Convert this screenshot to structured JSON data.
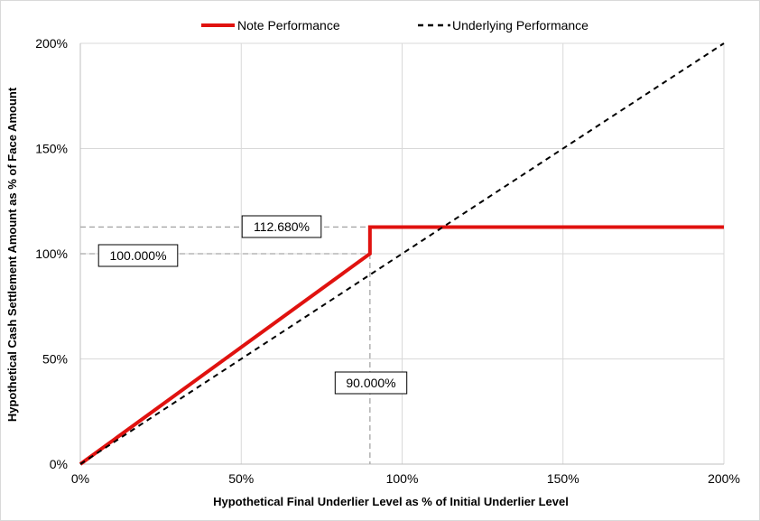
{
  "chart_data": {
    "type": "line",
    "xlabel": "Hypothetical Final Underlier Level as % of Initial Underlier Level",
    "ylabel": "Hypothetical Cash Settlement Amount as % of Face Amount",
    "xlim": [
      0,
      200
    ],
    "ylim": [
      0,
      200
    ],
    "x_ticks": [
      0,
      50,
      100,
      150,
      200
    ],
    "y_ticks": [
      0,
      50,
      100,
      150,
      200
    ],
    "x_tick_labels": [
      "0%",
      "50%",
      "100%",
      "150%",
      "200%"
    ],
    "y_tick_labels": [
      "0%",
      "50%",
      "100%",
      "150%",
      "200%"
    ],
    "grid": true,
    "legend_position": "top-center",
    "series": [
      {
        "name": "Note Performance",
        "color": "#e0120f",
        "style": "solid",
        "points": [
          [
            0,
            0
          ],
          [
            90,
            100
          ],
          [
            90,
            112.68
          ],
          [
            200,
            112.68
          ]
        ]
      },
      {
        "name": "Underlying Performance",
        "color": "#000000",
        "style": "dashed",
        "points": [
          [
            0,
            0
          ],
          [
            200,
            200
          ]
        ]
      }
    ],
    "annotations": [
      {
        "label": "112.680%",
        "value": 112.68,
        "orientation": "horizontal",
        "guide_to_x": 90
      },
      {
        "label": "100.000%",
        "value": 100,
        "orientation": "horizontal",
        "guide_to_x": 90
      },
      {
        "label": "90.000%",
        "value": 90,
        "orientation": "vertical",
        "guide_to_y": 100
      }
    ]
  }
}
